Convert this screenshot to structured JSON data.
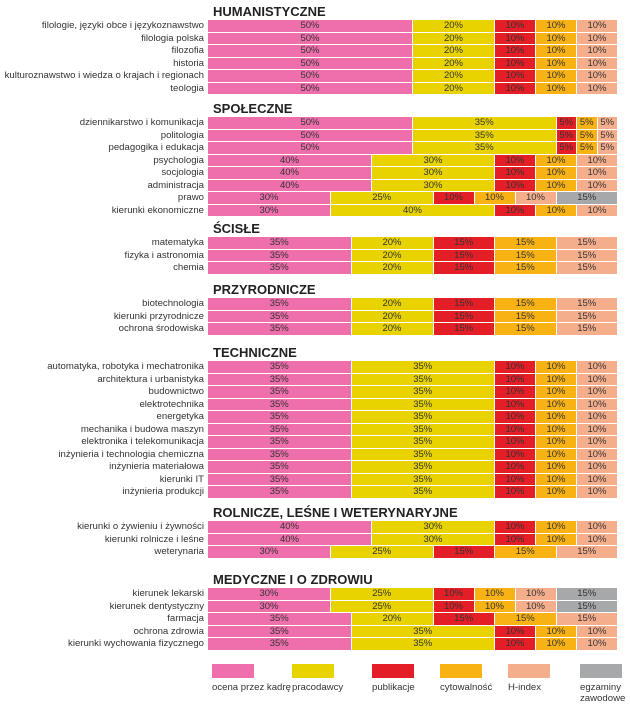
{
  "chart_data": {
    "type": "bar",
    "stacked": true,
    "orientation": "horizontal",
    "xlim": [
      0,
      100
    ],
    "series_names": [
      "ocena przez kadrę",
      "pracodawcy",
      "publikacje",
      "cytowalność",
      "H-index",
      "egzaminy zawodowe"
    ],
    "colors": [
      "#ee6fac",
      "#e8d300",
      "#e31e26",
      "#f9b214",
      "#f5ae8c",
      "#a7a8aa"
    ],
    "sections": [
      {
        "title": "HUMANISTYCZNE",
        "rows": [
          {
            "label": "filologie, języki obce i językoznawstwo",
            "values": [
              50,
              20,
              10,
              10,
              10,
              0
            ]
          },
          {
            "label": "filologia polska",
            "values": [
              50,
              20,
              10,
              10,
              10,
              0
            ]
          },
          {
            "label": "filozofia",
            "values": [
              50,
              20,
              10,
              10,
              10,
              0
            ]
          },
          {
            "label": "historia",
            "values": [
              50,
              20,
              10,
              10,
              10,
              0
            ]
          },
          {
            "label": "kulturoznawstwo i wiedza o krajach i regionach",
            "values": [
              50,
              20,
              10,
              10,
              10,
              0
            ]
          },
          {
            "label": "teologia",
            "values": [
              50,
              20,
              10,
              10,
              10,
              0
            ]
          }
        ]
      },
      {
        "title": "SPOŁECZNE",
        "rows": [
          {
            "label": "dziennikarstwo i komunikacja",
            "values": [
              50,
              35,
              5,
              5,
              5,
              0
            ]
          },
          {
            "label": "politologia",
            "values": [
              50,
              35,
              5,
              5,
              5,
              0
            ]
          },
          {
            "label": "pedagogika i edukacja",
            "values": [
              50,
              35,
              5,
              5,
              5,
              0
            ]
          },
          {
            "label": "psychologia",
            "values": [
              40,
              30,
              10,
              10,
              10,
              0
            ]
          },
          {
            "label": "socjologia",
            "values": [
              40,
              30,
              10,
              10,
              10,
              0
            ]
          },
          {
            "label": "administracja",
            "values": [
              40,
              30,
              10,
              10,
              10,
              0
            ]
          },
          {
            "label": "prawo",
            "values": [
              30,
              25,
              10,
              10,
              10,
              15
            ]
          },
          {
            "label": "kierunki ekonomiczne",
            "values": [
              30,
              40,
              10,
              10,
              10,
              0
            ]
          }
        ]
      },
      {
        "title": "ŚCISŁE",
        "rows": [
          {
            "label": "matematyka",
            "values": [
              35,
              20,
              15,
              15,
              15,
              0
            ]
          },
          {
            "label": "fizyka i astronomia",
            "values": [
              35,
              20,
              15,
              15,
              15,
              0
            ]
          },
          {
            "label": "chemia",
            "values": [
              35,
              20,
              15,
              15,
              15,
              0
            ]
          }
        ]
      },
      {
        "title": "PRZYRODNICZE",
        "rows": [
          {
            "label": "biotechnologia",
            "values": [
              35,
              20,
              15,
              15,
              15,
              0
            ]
          },
          {
            "label": "kierunki przyrodnicze",
            "values": [
              35,
              20,
              15,
              15,
              15,
              0
            ]
          },
          {
            "label": "ochrona środowiska",
            "values": [
              35,
              20,
              15,
              15,
              15,
              0
            ]
          }
        ]
      },
      {
        "title": "TECHNICZNE",
        "rows": [
          {
            "label": "automatyka, robotyka i mechatronika",
            "values": [
              35,
              35,
              10,
              10,
              10,
              0
            ]
          },
          {
            "label": "architektura i urbanistyka",
            "values": [
              35,
              35,
              10,
              10,
              10,
              0
            ]
          },
          {
            "label": "budownictwo",
            "values": [
              35,
              35,
              10,
              10,
              10,
              0
            ]
          },
          {
            "label": "elektrotechnika",
            "values": [
              35,
              35,
              10,
              10,
              10,
              0
            ]
          },
          {
            "label": "energetyka",
            "values": [
              35,
              35,
              10,
              10,
              10,
              0
            ]
          },
          {
            "label": "mechanika i budowa maszyn",
            "values": [
              35,
              35,
              10,
              10,
              10,
              0
            ]
          },
          {
            "label": "elektronika i telekomunikacja",
            "values": [
              35,
              35,
              10,
              10,
              10,
              0
            ]
          },
          {
            "label": "inżynieria i technologia chemiczna",
            "values": [
              35,
              35,
              10,
              10,
              10,
              0
            ]
          },
          {
            "label": "inżynieria materiałowa",
            "values": [
              35,
              35,
              10,
              10,
              10,
              0
            ]
          },
          {
            "label": "kierunki IT",
            "values": [
              35,
              35,
              10,
              10,
              10,
              0
            ]
          },
          {
            "label": "inżynieria produkcji",
            "values": [
              35,
              35,
              10,
              10,
              10,
              0
            ]
          }
        ]
      },
      {
        "title": "ROLNICZE, LEŚNE I WETERYNARYJNE",
        "rows": [
          {
            "label": "kierunki o żywieniu i żywności",
            "values": [
              40,
              30,
              10,
              10,
              10,
              0
            ]
          },
          {
            "label": "kierunki rolnicze i leśne",
            "values": [
              40,
              30,
              10,
              10,
              10,
              0
            ]
          },
          {
            "label": "weterynaria",
            "values": [
              30,
              25,
              15,
              15,
              15,
              0
            ]
          }
        ]
      },
      {
        "title": "MEDYCZNE I O ZDROWIU",
        "rows": [
          {
            "label": "kierunek lekarski",
            "values": [
              30,
              25,
              10,
              10,
              10,
              15
            ]
          },
          {
            "label": "kierunek dentystyczny",
            "values": [
              30,
              25,
              10,
              10,
              10,
              15
            ]
          },
          {
            "label": "farmacja",
            "values": [
              35,
              20,
              15,
              15,
              15,
              0
            ]
          },
          {
            "label": "ochrona zdrowia",
            "values": [
              35,
              35,
              10,
              10,
              10,
              0
            ]
          },
          {
            "label": "kierunki wychowania fizycznego",
            "values": [
              35,
              35,
              10,
              10,
              10,
              0
            ]
          }
        ]
      }
    ]
  },
  "legend": {
    "items": [
      "ocena przez kadrę",
      "pracodawcy",
      "publikacje",
      "cytowalność",
      "H-index",
      "egzaminy zawodowe"
    ]
  }
}
